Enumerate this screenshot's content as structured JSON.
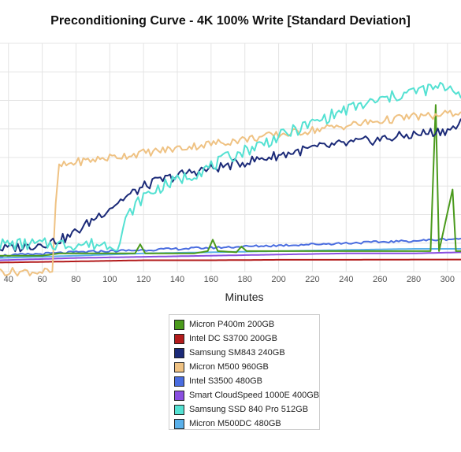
{
  "chart_data": {
    "type": "line",
    "title": "Preconditioning Curve - 4K 100% Write [Standard Deviation]",
    "xlabel": "Minutes",
    "ylabel": "",
    "x_ticks": [
      40,
      60,
      80,
      100,
      120,
      140,
      160,
      180,
      200,
      220,
      240,
      260,
      280,
      300
    ],
    "xlim": [
      35,
      308
    ],
    "ylim": [
      0,
      100
    ],
    "grid": true,
    "legend_position": "bottom-center",
    "series": [
      {
        "name": "Micron P400m 200GB",
        "color": "#4a9a1c",
        "points": [
          [
            35,
            7
          ],
          [
            60,
            7
          ],
          [
            70,
            8
          ],
          [
            100,
            8
          ],
          [
            115,
            8
          ],
          [
            118,
            12
          ],
          [
            121,
            8
          ],
          [
            150,
            8
          ],
          [
            158,
            9
          ],
          [
            161,
            14
          ],
          [
            164,
            9
          ],
          [
            175,
            8.5
          ],
          [
            178,
            11
          ],
          [
            181,
            9
          ],
          [
            200,
            9
          ],
          [
            230,
            9
          ],
          [
            260,
            9
          ],
          [
            290,
            9
          ],
          [
            293,
            73
          ],
          [
            295,
            9
          ],
          [
            303,
            36
          ],
          [
            305,
            9
          ],
          [
            308,
            9
          ]
        ]
      },
      {
        "name": "Intel DC S3700 200GB",
        "color": "#b31b1b",
        "points": [
          [
            35,
            4
          ],
          [
            80,
            4.5
          ],
          [
            120,
            5
          ],
          [
            160,
            5
          ],
          [
            200,
            5.2
          ],
          [
            240,
            5.2
          ],
          [
            280,
            5.3
          ],
          [
            308,
            5.3
          ]
        ]
      },
      {
        "name": "Samsung SM843 240GB",
        "color": "#1b2a78",
        "points": [
          [
            35,
            10
          ],
          [
            50,
            11
          ],
          [
            65,
            13
          ],
          [
            75,
            15
          ],
          [
            85,
            20
          ],
          [
            92,
            24
          ],
          [
            100,
            28
          ],
          [
            108,
            32
          ],
          [
            115,
            35
          ],
          [
            122,
            38
          ],
          [
            130,
            40
          ],
          [
            140,
            42
          ],
          [
            150,
            44
          ],
          [
            160,
            45
          ],
          [
            170,
            46.5
          ],
          [
            180,
            48
          ],
          [
            190,
            49.5
          ],
          [
            200,
            51
          ],
          [
            210,
            52.5
          ],
          [
            220,
            54
          ],
          [
            230,
            55
          ],
          [
            240,
            56
          ],
          [
            250,
            57
          ],
          [
            260,
            58
          ],
          [
            270,
            59
          ],
          [
            280,
            60
          ],
          [
            290,
            61
          ],
          [
            300,
            62
          ],
          [
            305,
            63
          ],
          [
            308,
            67
          ]
        ]
      },
      {
        "name": "Micron M500 960GB",
        "color": "#efc283",
        "points": [
          [
            35,
            0
          ],
          [
            60,
            0
          ],
          [
            66,
            0
          ],
          [
            68,
            30
          ],
          [
            70,
            46
          ],
          [
            80,
            48
          ],
          [
            90,
            49
          ],
          [
            100,
            50
          ],
          [
            110,
            51
          ],
          [
            120,
            52
          ],
          [
            130,
            53
          ],
          [
            140,
            54
          ],
          [
            150,
            55
          ],
          [
            160,
            56
          ],
          [
            170,
            57
          ],
          [
            180,
            58
          ],
          [
            190,
            59
          ],
          [
            200,
            60
          ],
          [
            210,
            61
          ],
          [
            220,
            62
          ],
          [
            230,
            63
          ],
          [
            240,
            64
          ],
          [
            250,
            65
          ],
          [
            260,
            66
          ],
          [
            270,
            67
          ],
          [
            280,
            68
          ],
          [
            290,
            68
          ],
          [
            300,
            69
          ],
          [
            308,
            70
          ]
        ]
      },
      {
        "name": "Intel S3500 480GB",
        "color": "#4a6de0",
        "points": [
          [
            35,
            7
          ],
          [
            80,
            8.5
          ],
          [
            120,
            9.5
          ],
          [
            160,
            10.5
          ],
          [
            200,
            11.5
          ],
          [
            240,
            12.5
          ],
          [
            280,
            13.5
          ],
          [
            308,
            14.5
          ]
        ]
      },
      {
        "name": "Smart CloudSpeed 1000E 400GB",
        "color": "#8a4fe0",
        "points": [
          [
            35,
            5
          ],
          [
            80,
            6
          ],
          [
            120,
            6.5
          ],
          [
            160,
            7
          ],
          [
            200,
            7.5
          ],
          [
            240,
            8
          ],
          [
            280,
            8
          ],
          [
            308,
            8.5
          ]
        ]
      },
      {
        "name": "Samsung SSD 840 Pro 512GB",
        "color": "#54e1d2",
        "points": [
          [
            35,
            12
          ],
          [
            60,
            12
          ],
          [
            80,
            12
          ],
          [
            100,
            12
          ],
          [
            106,
            12
          ],
          [
            108,
            20
          ],
          [
            112,
            26
          ],
          [
            120,
            33
          ],
          [
            130,
            37
          ],
          [
            140,
            40
          ],
          [
            150,
            43
          ],
          [
            160,
            46
          ],
          [
            170,
            50
          ],
          [
            180,
            53
          ],
          [
            190,
            56
          ],
          [
            200,
            59
          ],
          [
            210,
            62
          ],
          [
            220,
            65
          ],
          [
            230,
            68
          ],
          [
            240,
            71
          ],
          [
            250,
            73
          ],
          [
            260,
            75
          ],
          [
            270,
            77
          ],
          [
            280,
            79
          ],
          [
            290,
            80
          ],
          [
            300,
            81
          ],
          [
            305,
            80
          ],
          [
            308,
            76
          ]
        ]
      },
      {
        "name": "Micron M500DC 480GB",
        "color": "#5ab0ea",
        "points": [
          [
            35,
            6
          ],
          [
            80,
            7
          ],
          [
            120,
            8
          ],
          [
            160,
            8.5
          ],
          [
            200,
            9
          ],
          [
            240,
            9.5
          ],
          [
            280,
            10
          ],
          [
            308,
            10
          ]
        ]
      }
    ]
  }
}
